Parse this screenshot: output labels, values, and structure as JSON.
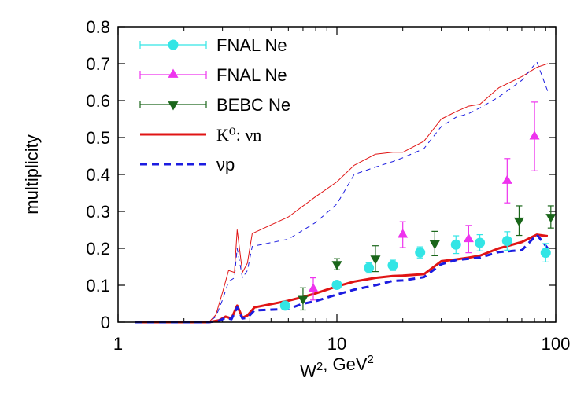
{
  "chart_data": {
    "type": "scatter",
    "xlabel": "W², GeV²",
    "ylabel": "multiplicity",
    "xscale": "log",
    "xlim": [
      1,
      100
    ],
    "ylim": [
      0,
      0.8
    ],
    "xticks": [
      "1",
      "10",
      "100"
    ],
    "yticks": [
      "0",
      "0.1",
      "0.2",
      "0.3",
      "0.4",
      "0.5",
      "0.6",
      "0.7",
      "0.8"
    ],
    "legend_position": "top-left",
    "series": [
      {
        "name": "FNAL Ne",
        "kind": "points",
        "marker": "circle",
        "color": "#33e5e5",
        "points": [
          {
            "x": 5.8,
            "y": 0.045,
            "err": 0.008
          },
          {
            "x": 10,
            "y": 0.101,
            "err": 0.01
          },
          {
            "x": 14,
            "y": 0.147,
            "err": 0.014
          },
          {
            "x": 18,
            "y": 0.154,
            "err": 0.014
          },
          {
            "x": 24,
            "y": 0.189,
            "err": 0.015
          },
          {
            "x": 35,
            "y": 0.21,
            "err": 0.024
          },
          {
            "x": 45,
            "y": 0.215,
            "err": 0.022
          },
          {
            "x": 60,
            "y": 0.22,
            "err": 0.025
          },
          {
            "x": 90,
            "y": 0.188,
            "err": 0.025
          }
        ]
      },
      {
        "name": "FNAL Ne",
        "kind": "points",
        "marker": "triangle-up",
        "color": "#ee33ee",
        "points": [
          {
            "x": 7.8,
            "y": 0.09,
            "err": 0.03
          },
          {
            "x": 20,
            "y": 0.237,
            "err": 0.035
          },
          {
            "x": 40,
            "y": 0.225,
            "err": 0.037
          },
          {
            "x": 60,
            "y": 0.383,
            "err": 0.06
          },
          {
            "x": 80,
            "y": 0.503,
            "err": 0.093
          }
        ]
      },
      {
        "name": "BEBC Ne",
        "kind": "points",
        "marker": "triangle-down",
        "color": "#1a661a",
        "points": [
          {
            "x": 7,
            "y": 0.063,
            "err": 0.03
          },
          {
            "x": 10,
            "y": 0.157,
            "err": 0.015
          },
          {
            "x": 15,
            "y": 0.172,
            "err": 0.035
          },
          {
            "x": 28,
            "y": 0.213,
            "err": 0.033
          },
          {
            "x": 68,
            "y": 0.275,
            "err": 0.04
          },
          {
            "x": 95,
            "y": 0.285,
            "err": 0.03
          }
        ]
      },
      {
        "name": "K⁰: νn",
        "kind": "line",
        "style": "solid",
        "width": 3,
        "color": "#e01414",
        "x": [
          1.2,
          2.6,
          2.9,
          3.1,
          3.3,
          3.5,
          3.7,
          3.9,
          4.2,
          6,
          7,
          8,
          10,
          12,
          15,
          18,
          20,
          25,
          30,
          35,
          40,
          45,
          55,
          70,
          82,
          92
        ],
        "y": [
          0,
          0,
          0.005,
          0.015,
          0.01,
          0.045,
          0.012,
          0.018,
          0.04,
          0.058,
          0.068,
          0.078,
          0.097,
          0.11,
          0.12,
          0.125,
          0.126,
          0.13,
          0.165,
          0.17,
          0.175,
          0.18,
          0.2,
          0.217,
          0.237,
          0.233
        ]
      },
      {
        "name": "νp",
        "kind": "line",
        "style": "dashed",
        "width": 3,
        "color": "#1c1ce0",
        "x": [
          1.2,
          2.6,
          2.9,
          3.1,
          3.3,
          3.5,
          3.7,
          3.9,
          4.2,
          6,
          7,
          8,
          10,
          12,
          15,
          18,
          20,
          25,
          30,
          35,
          40,
          45,
          55,
          70,
          82,
          92
        ],
        "y": [
          0,
          0,
          0.004,
          0.012,
          0.008,
          0.04,
          0.01,
          0.012,
          0.032,
          0.036,
          0.05,
          0.057,
          0.075,
          0.088,
          0.1,
          0.112,
          0.113,
          0.122,
          0.157,
          0.168,
          0.172,
          0.175,
          0.19,
          0.195,
          0.237,
          0.2
        ]
      },
      {
        "name": "",
        "kind": "line",
        "style": "solid",
        "width": 1,
        "color": "#e01414",
        "x": [
          1.2,
          2.6,
          2.8,
          3.0,
          3.2,
          3.4,
          3.5,
          3.7,
          3.9,
          4.1,
          6,
          8,
          10,
          12,
          15,
          18,
          20,
          25,
          30,
          35,
          40,
          45,
          55,
          70,
          82,
          92
        ],
        "y": [
          0,
          0,
          0.02,
          0.08,
          0.14,
          0.135,
          0.25,
          0.135,
          0.16,
          0.24,
          0.285,
          0.34,
          0.38,
          0.425,
          0.455,
          0.46,
          0.46,
          0.49,
          0.55,
          0.57,
          0.585,
          0.59,
          0.635,
          0.665,
          0.69,
          0.7
        ]
      },
      {
        "name": "",
        "kind": "line",
        "style": "dashed",
        "width": 1,
        "color": "#1c1ce0",
        "x": [
          1.2,
          2.6,
          2.8,
          3.0,
          3.2,
          3.4,
          3.5,
          3.7,
          3.9,
          4.1,
          6,
          8,
          10,
          12,
          15,
          18,
          20,
          25,
          30,
          35,
          40,
          45,
          55,
          70,
          82,
          92
        ],
        "y": [
          0,
          0,
          0.015,
          0.06,
          0.11,
          0.12,
          0.2,
          0.12,
          0.14,
          0.205,
          0.225,
          0.27,
          0.32,
          0.4,
          0.42,
          0.435,
          0.445,
          0.47,
          0.53,
          0.555,
          0.565,
          0.58,
          0.61,
          0.655,
          0.705,
          0.625
        ]
      }
    ]
  }
}
